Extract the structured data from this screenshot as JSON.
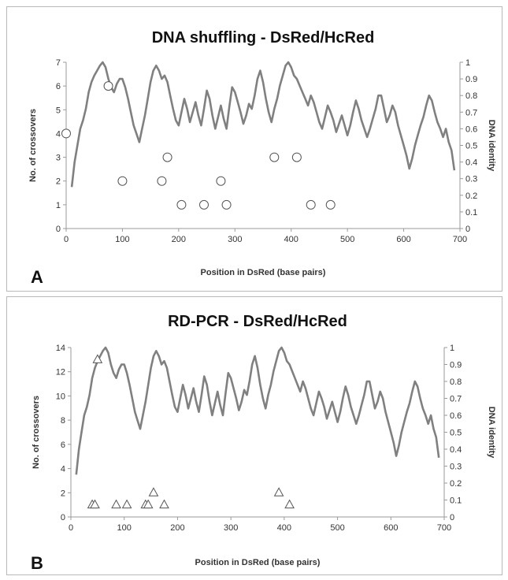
{
  "chart_data": [
    {
      "type": "line",
      "panel_label": "A",
      "title": "DNA shuffling - DsRed/HcRed",
      "xlabel": "Position in DsRed (base pairs)",
      "ylabel": "No. of crossovers",
      "y2label": "DNA identity",
      "xlim": [
        0,
        700
      ],
      "ylim": [
        0,
        7
      ],
      "y2lim": [
        0,
        1
      ],
      "xticks": [
        "0",
        "100",
        "200",
        "300",
        "400",
        "500",
        "600",
        "700"
      ],
      "yticks": [
        "0",
        "1",
        "2",
        "3",
        "4",
        "5",
        "6",
        "7"
      ],
      "y2ticks": [
        "0",
        "0.1",
        "0.2",
        "0.3",
        "0.4",
        "0.5",
        "0.6",
        "0.7",
        "0.8",
        "0.9",
        "1"
      ],
      "grid": false,
      "series": [
        {
          "kind": "line",
          "axis": "right",
          "color": "#808080",
          "x": [
            10,
            15,
            20,
            25,
            30,
            35,
            40,
            45,
            50,
            55,
            60,
            65,
            70,
            75,
            80,
            85,
            90,
            95,
            100,
            105,
            110,
            115,
            120,
            125,
            130,
            135,
            140,
            145,
            150,
            155,
            160,
            165,
            170,
            175,
            180,
            185,
            190,
            195,
            200,
            205,
            210,
            215,
            220,
            225,
            230,
            235,
            240,
            245,
            250,
            255,
            260,
            265,
            270,
            275,
            280,
            285,
            290,
            295,
            300,
            305,
            310,
            315,
            320,
            325,
            330,
            335,
            340,
            345,
            350,
            355,
            360,
            365,
            370,
            375,
            380,
            385,
            390,
            395,
            400,
            405,
            410,
            415,
            420,
            425,
            430,
            435,
            440,
            445,
            450,
            455,
            460,
            465,
            470,
            475,
            480,
            485,
            490,
            495,
            500,
            505,
            510,
            515,
            520,
            525,
            530,
            535,
            540,
            545,
            550,
            555,
            560,
            565,
            570,
            575,
            580,
            585,
            590,
            595,
            600,
            605,
            610,
            615,
            620,
            625,
            630,
            635,
            640,
            645,
            650,
            655,
            660,
            665,
            670,
            675,
            680,
            685,
            690
          ],
          "y": [
            0.25,
            0.4,
            0.5,
            0.6,
            0.65,
            0.72,
            0.82,
            0.88,
            0.92,
            0.95,
            0.98,
            1.0,
            0.97,
            0.9,
            0.85,
            0.82,
            0.87,
            0.9,
            0.9,
            0.85,
            0.78,
            0.7,
            0.62,
            0.57,
            0.52,
            0.6,
            0.68,
            0.78,
            0.88,
            0.95,
            0.98,
            0.95,
            0.9,
            0.92,
            0.88,
            0.8,
            0.72,
            0.65,
            0.62,
            0.7,
            0.78,
            0.72,
            0.64,
            0.7,
            0.76,
            0.68,
            0.62,
            0.72,
            0.83,
            0.78,
            0.68,
            0.6,
            0.67,
            0.74,
            0.66,
            0.6,
            0.73,
            0.85,
            0.82,
            0.76,
            0.7,
            0.63,
            0.68,
            0.75,
            0.72,
            0.8,
            0.9,
            0.95,
            0.88,
            0.78,
            0.7,
            0.64,
            0.72,
            0.78,
            0.86,
            0.92,
            0.98,
            1.0,
            0.97,
            0.92,
            0.9,
            0.86,
            0.82,
            0.78,
            0.74,
            0.8,
            0.76,
            0.7,
            0.64,
            0.6,
            0.67,
            0.74,
            0.7,
            0.65,
            0.58,
            0.63,
            0.68,
            0.62,
            0.56,
            0.62,
            0.7,
            0.77,
            0.72,
            0.65,
            0.6,
            0.55,
            0.6,
            0.66,
            0.72,
            0.8,
            0.8,
            0.72,
            0.64,
            0.68,
            0.74,
            0.7,
            0.62,
            0.56,
            0.5,
            0.44,
            0.36,
            0.42,
            0.5,
            0.56,
            0.62,
            0.67,
            0.74,
            0.8,
            0.77,
            0.7,
            0.64,
            0.6,
            0.55,
            0.6,
            0.52,
            0.47,
            0.35
          ]
        },
        {
          "kind": "scatter",
          "axis": "left",
          "marker": "circle",
          "x": [
            0,
            75,
            100,
            170,
            180,
            205,
            245,
            275,
            285,
            370,
            410,
            435,
            470
          ],
          "y": [
            4,
            6,
            2,
            2,
            3,
            1,
            1,
            2,
            1,
            3,
            3,
            1,
            1
          ]
        }
      ]
    },
    {
      "type": "line",
      "panel_label": "B",
      "title": "RD-PCR - DsRed/HcRed",
      "xlabel": "Position in DsRed (base pairs)",
      "ylabel": "No. of crossovers",
      "y2label": "DNA identity",
      "xlim": [
        0,
        700
      ],
      "ylim": [
        0,
        14
      ],
      "y2lim": [
        0,
        1
      ],
      "xticks": [
        "0",
        "100",
        "200",
        "300",
        "400",
        "500",
        "600",
        "700"
      ],
      "yticks": [
        "0",
        "2",
        "4",
        "6",
        "8",
        "10",
        "12",
        "14"
      ],
      "y2ticks": [
        "0",
        "0.1",
        "0.2",
        "0.3",
        "0.4",
        "0.5",
        "0.6",
        "0.7",
        "0.8",
        "0.9",
        "1"
      ],
      "grid": false,
      "series": [
        {
          "kind": "line",
          "axis": "right",
          "color": "#808080",
          "x": [
            10,
            15,
            20,
            25,
            30,
            35,
            40,
            45,
            50,
            55,
            60,
            65,
            70,
            75,
            80,
            85,
            90,
            95,
            100,
            105,
            110,
            115,
            120,
            125,
            130,
            135,
            140,
            145,
            150,
            155,
            160,
            165,
            170,
            175,
            180,
            185,
            190,
            195,
            200,
            205,
            210,
            215,
            220,
            225,
            230,
            235,
            240,
            245,
            250,
            255,
            260,
            265,
            270,
            275,
            280,
            285,
            290,
            295,
            300,
            305,
            310,
            315,
            320,
            325,
            330,
            335,
            340,
            345,
            350,
            355,
            360,
            365,
            370,
            375,
            380,
            385,
            390,
            395,
            400,
            405,
            410,
            415,
            420,
            425,
            430,
            435,
            440,
            445,
            450,
            455,
            460,
            465,
            470,
            475,
            480,
            485,
            490,
            495,
            500,
            505,
            510,
            515,
            520,
            525,
            530,
            535,
            540,
            545,
            550,
            555,
            560,
            565,
            570,
            575,
            580,
            585,
            590,
            595,
            600,
            605,
            610,
            615,
            620,
            625,
            630,
            635,
            640,
            645,
            650,
            655,
            660,
            665,
            670,
            675,
            680,
            685,
            690
          ],
          "y": [
            0.25,
            0.4,
            0.5,
            0.6,
            0.65,
            0.72,
            0.82,
            0.88,
            0.92,
            0.95,
            0.98,
            1.0,
            0.97,
            0.9,
            0.85,
            0.82,
            0.87,
            0.9,
            0.9,
            0.85,
            0.78,
            0.7,
            0.62,
            0.57,
            0.52,
            0.6,
            0.68,
            0.78,
            0.88,
            0.95,
            0.98,
            0.95,
            0.9,
            0.92,
            0.88,
            0.8,
            0.72,
            0.65,
            0.62,
            0.7,
            0.78,
            0.72,
            0.64,
            0.7,
            0.76,
            0.68,
            0.62,
            0.72,
            0.83,
            0.78,
            0.68,
            0.6,
            0.67,
            0.74,
            0.66,
            0.6,
            0.73,
            0.85,
            0.82,
            0.76,
            0.7,
            0.63,
            0.68,
            0.75,
            0.72,
            0.8,
            0.9,
            0.95,
            0.88,
            0.78,
            0.7,
            0.64,
            0.72,
            0.78,
            0.86,
            0.92,
            0.98,
            1.0,
            0.97,
            0.92,
            0.9,
            0.86,
            0.82,
            0.78,
            0.74,
            0.8,
            0.76,
            0.7,
            0.64,
            0.6,
            0.67,
            0.74,
            0.7,
            0.65,
            0.58,
            0.63,
            0.68,
            0.62,
            0.56,
            0.62,
            0.7,
            0.77,
            0.72,
            0.65,
            0.6,
            0.55,
            0.6,
            0.66,
            0.72,
            0.8,
            0.8,
            0.72,
            0.64,
            0.68,
            0.74,
            0.7,
            0.62,
            0.56,
            0.5,
            0.44,
            0.36,
            0.42,
            0.5,
            0.56,
            0.62,
            0.67,
            0.74,
            0.8,
            0.77,
            0.7,
            0.64,
            0.6,
            0.55,
            0.6,
            0.52,
            0.47,
            0.35
          ]
        },
        {
          "kind": "scatter",
          "axis": "left",
          "marker": "triangle",
          "x": [
            50,
            40,
            45,
            85,
            105,
            140,
            145,
            155,
            175,
            390,
            410
          ],
          "y": [
            13,
            1,
            1,
            1,
            1,
            1,
            1,
            2,
            1,
            2,
            1
          ]
        }
      ]
    }
  ]
}
